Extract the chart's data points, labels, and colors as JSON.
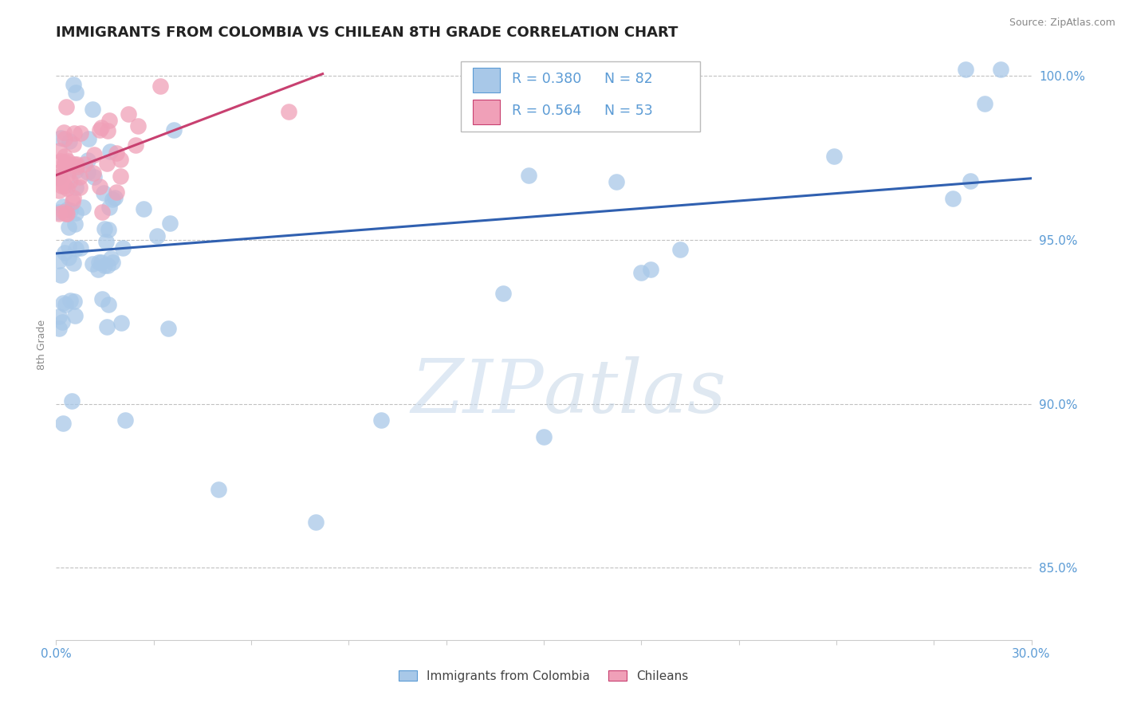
{
  "title": "IMMIGRANTS FROM COLOMBIA VS CHILEAN 8TH GRADE CORRELATION CHART",
  "source_text": "Source: ZipAtlas.com",
  "ylabel": "8th Grade",
  "xlim": [
    0.0,
    0.3
  ],
  "ylim": [
    0.828,
    1.008
  ],
  "yticks": [
    0.85,
    0.9,
    0.95,
    1.0
  ],
  "yticklabels": [
    "85.0%",
    "90.0%",
    "95.0%",
    "100.0%"
  ],
  "blue_R": 0.38,
  "blue_N": 82,
  "pink_R": 0.564,
  "pink_N": 53,
  "blue_color": "#A8C8E8",
  "pink_color": "#F0A0B8",
  "blue_line_color": "#3060B0",
  "pink_line_color": "#C84070",
  "legend_label_blue": "Immigrants from Colombia",
  "legend_label_pink": "Chileans",
  "watermark_zip": "ZIP",
  "watermark_atlas": "atlas",
  "title_fontsize": 13,
  "axis_label_color": "#5B9BD5",
  "grid_color": "#BBBBBB",
  "blue_seed": 12345,
  "pink_seed": 67890
}
